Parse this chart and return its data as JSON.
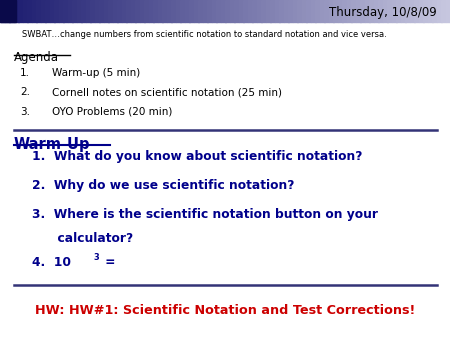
{
  "bg_color": "#ffffff",
  "date_text": "Thursday, 10/8/09",
  "swbat_text": "SWBAT…change numbers from scientific notation to standard notation and vice versa.",
  "agenda_label": "Agenda",
  "agenda_items": [
    "Warm-up (5 min)",
    "Cornell notes on scientific notation (25 min)",
    "OYO Problems (20 min)"
  ],
  "warmup_label": "Warm-Up",
  "warmup_line1": "1.  What do you know about scientific notation?",
  "warmup_line2": "2.  Why do we use scientific notation?",
  "warmup_line3a": "3.  Where is the scientific notation button on your",
  "warmup_line3b": "      calculator?",
  "warmup_line4_prefix": "4.  10",
  "warmup_line4_sup": "3",
  "warmup_line4_suffix": " =",
  "hw_text": "HW: HW#1: Scientific Notation and Test Corrections!",
  "dark_blue": "#00008B",
  "red": "#cc0000",
  "header_left": "#1a1a6e",
  "header_right": "#c8c8e0"
}
